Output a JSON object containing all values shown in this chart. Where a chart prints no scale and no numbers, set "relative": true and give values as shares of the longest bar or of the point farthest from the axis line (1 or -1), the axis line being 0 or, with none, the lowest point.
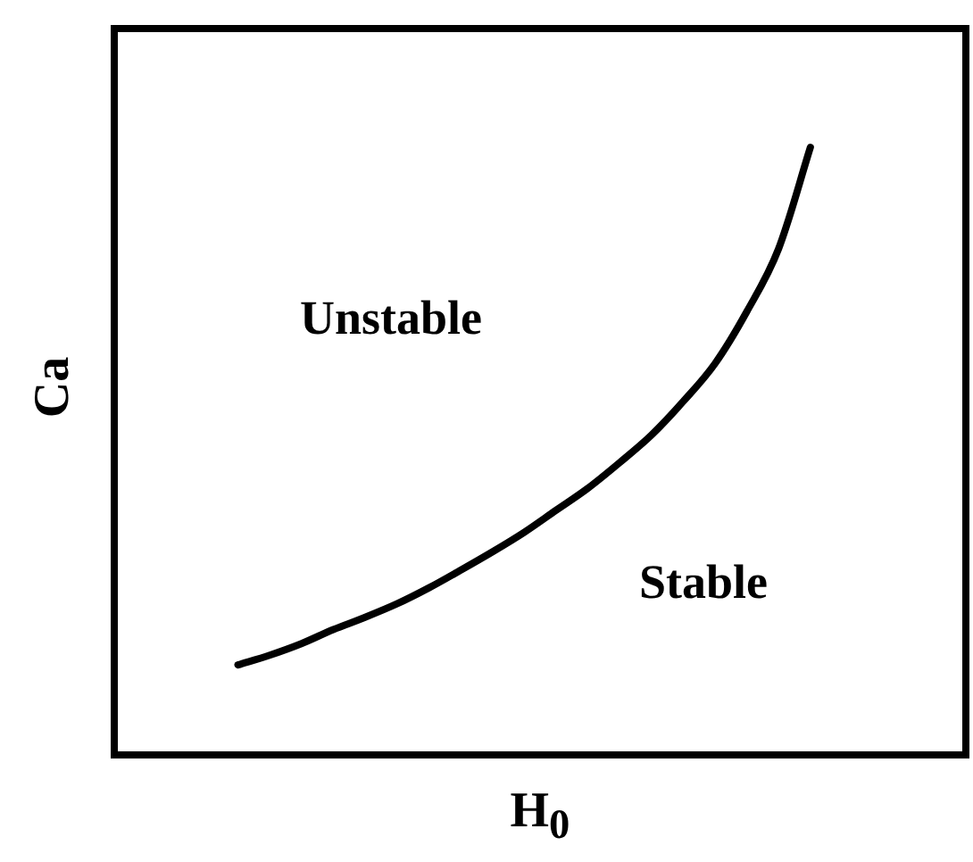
{
  "chart_data": {
    "type": "line",
    "relative": true,
    "xlabel": "H$_{0}$",
    "ylabel": "Ca",
    "color": "#000000",
    "marker": "none",
    "legend": false,
    "tick_labels": false,
    "categories": [
      null,
      null,
      null,
      null,
      null,
      null,
      null,
      null,
      null,
      null,
      null,
      null,
      null,
      null,
      null,
      null,
      null,
      null,
      null,
      null,
      null,
      null,
      null,
      null,
      null,
      null,
      null,
      null
    ],
    "values": [
      null,
      null,
      null,
      null,
      0.153,
      0.169,
      0.188,
      0.211,
      0.231,
      0.253,
      0.279,
      0.308,
      0.338,
      0.37,
      0.406,
      0.442,
      0.484,
      0.529,
      0.584,
      0.646,
      0.731,
      0.834,
      1,
      null,
      null,
      null,
      null,
      null
    ],
    "annotations": [
      "Unstable",
      "Stable"
    ]
  }
}
